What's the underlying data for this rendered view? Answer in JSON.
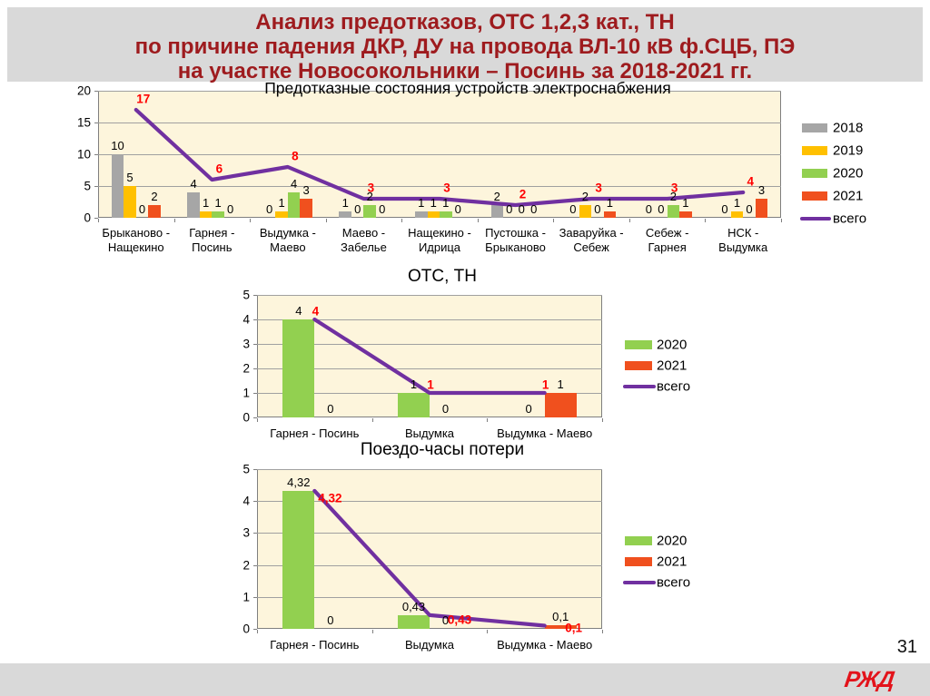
{
  "slide": {
    "title_lines": [
      "Анализ предотказов, ОТС 1,2,3 кат., ТН",
      "по причине падения ДКР, ДУ на провода ВЛ-10 кВ ф.СЦБ, ПЭ",
      "на участке Новосокольники – Посинь за 2018-2021 гг."
    ],
    "page_number": "31",
    "logo_text": "РЖД"
  },
  "colors": {
    "title": "#9E1B1E",
    "band": "#D9D9D9",
    "plot_bg": "#FDF5DC",
    "red_label": "#FF0000",
    "s2018": "#A6A6A6",
    "s2019": "#FFC000",
    "s2020": "#92D050",
    "s2021": "#F0501E",
    "total": "#7030A0",
    "logo": "#E3131B"
  },
  "chart_data": [
    {
      "type": "bar",
      "title": "Предотказные состояния устройств электроснабжения",
      "categories": [
        "Брыканово - Нащекино",
        "Гарнея - Посинь",
        "Выдумка - Маево",
        "Маево - Забелье",
        "Нащекино - Идрица",
        "Пустошка - Брыканово",
        "Заваруйка - Себеж",
        "Себеж - Гарнея",
        "НСК - Выдумка"
      ],
      "series": [
        {
          "name": "2018",
          "color_key": "s2018",
          "values": [
            10,
            4,
            0,
            1,
            1,
            2,
            0,
            0,
            0
          ],
          "labels": [
            "10",
            "4",
            "0",
            "1",
            "1",
            "2",
            "0",
            "0",
            "0"
          ]
        },
        {
          "name": "2019",
          "color_key": "s2019",
          "values": [
            5,
            1,
            1,
            0,
            1,
            0,
            2,
            0,
            1
          ],
          "labels": [
            "5",
            "1",
            "1",
            "0",
            "1",
            "0",
            "2",
            "0",
            "1"
          ]
        },
        {
          "name": "2020",
          "color_key": "s2020",
          "values": [
            0,
            1,
            4,
            2,
            1,
            0,
            0,
            2,
            0
          ],
          "labels": [
            "0",
            "1",
            "4",
            "2",
            "1",
            "0",
            "0",
            "2",
            "0"
          ]
        },
        {
          "name": "2021",
          "color_key": "s2021",
          "values": [
            2,
            0,
            3,
            0,
            0,
            0,
            1,
            1,
            3
          ],
          "labels": [
            "2",
            "0",
            "3",
            "0",
            "0",
            "0",
            "1",
            "1",
            "3"
          ]
        }
      ],
      "line": {
        "name": "всего",
        "values": [
          17,
          6,
          8,
          3,
          3,
          2,
          3,
          3,
          4
        ],
        "labels": [
          "17",
          "6",
          "8",
          "3",
          "3",
          "2",
          "3",
          "3",
          "4"
        ]
      },
      "ylim": [
        0,
        20
      ],
      "yticks": [
        "0",
        "5",
        "10",
        "15",
        "20"
      ],
      "legend_position": "right",
      "grid": true
    },
    {
      "type": "bar",
      "title": "ОТС, ТН",
      "categories": [
        "Гарнея - Посинь",
        "Выдумка",
        "Выдумка - Маево"
      ],
      "series": [
        {
          "name": "2020",
          "color_key": "s2020",
          "values": [
            4,
            1,
            0
          ],
          "labels": [
            "4",
            "1",
            "0"
          ]
        },
        {
          "name": "2021",
          "color_key": "s2021",
          "values": [
            0,
            0,
            1
          ],
          "labels": [
            "0",
            "0",
            "1"
          ]
        }
      ],
      "line": {
        "name": "всего",
        "values": [
          4,
          1,
          1
        ],
        "labels": [
          "4",
          "1",
          "1"
        ]
      },
      "ylim": [
        0,
        5
      ],
      "yticks": [
        "0",
        "1",
        "2",
        "3",
        "4",
        "5"
      ],
      "legend_position": "right",
      "grid": true
    },
    {
      "type": "bar",
      "title": "Поездо-часы потери",
      "categories": [
        "Гарнея - Посинь",
        "Выдумка",
        "Выдумка - Маево"
      ],
      "series": [
        {
          "name": "2020",
          "color_key": "s2020",
          "values": [
            4.32,
            0.43,
            0
          ],
          "labels": [
            "4,32",
            "0,43",
            ""
          ]
        },
        {
          "name": "2021",
          "color_key": "s2021",
          "values": [
            0,
            0,
            0.1
          ],
          "labels": [
            "0",
            "0",
            "0,1"
          ]
        }
      ],
      "line": {
        "name": "всего",
        "values": [
          4.32,
          0.43,
          0.1
        ],
        "labels": [
          "4,32",
          "0,43",
          "0,1"
        ]
      },
      "ylim": [
        0,
        5
      ],
      "yticks": [
        "0",
        "1",
        "2",
        "3",
        "4",
        "5"
      ],
      "legend_position": "right",
      "grid": true
    }
  ]
}
